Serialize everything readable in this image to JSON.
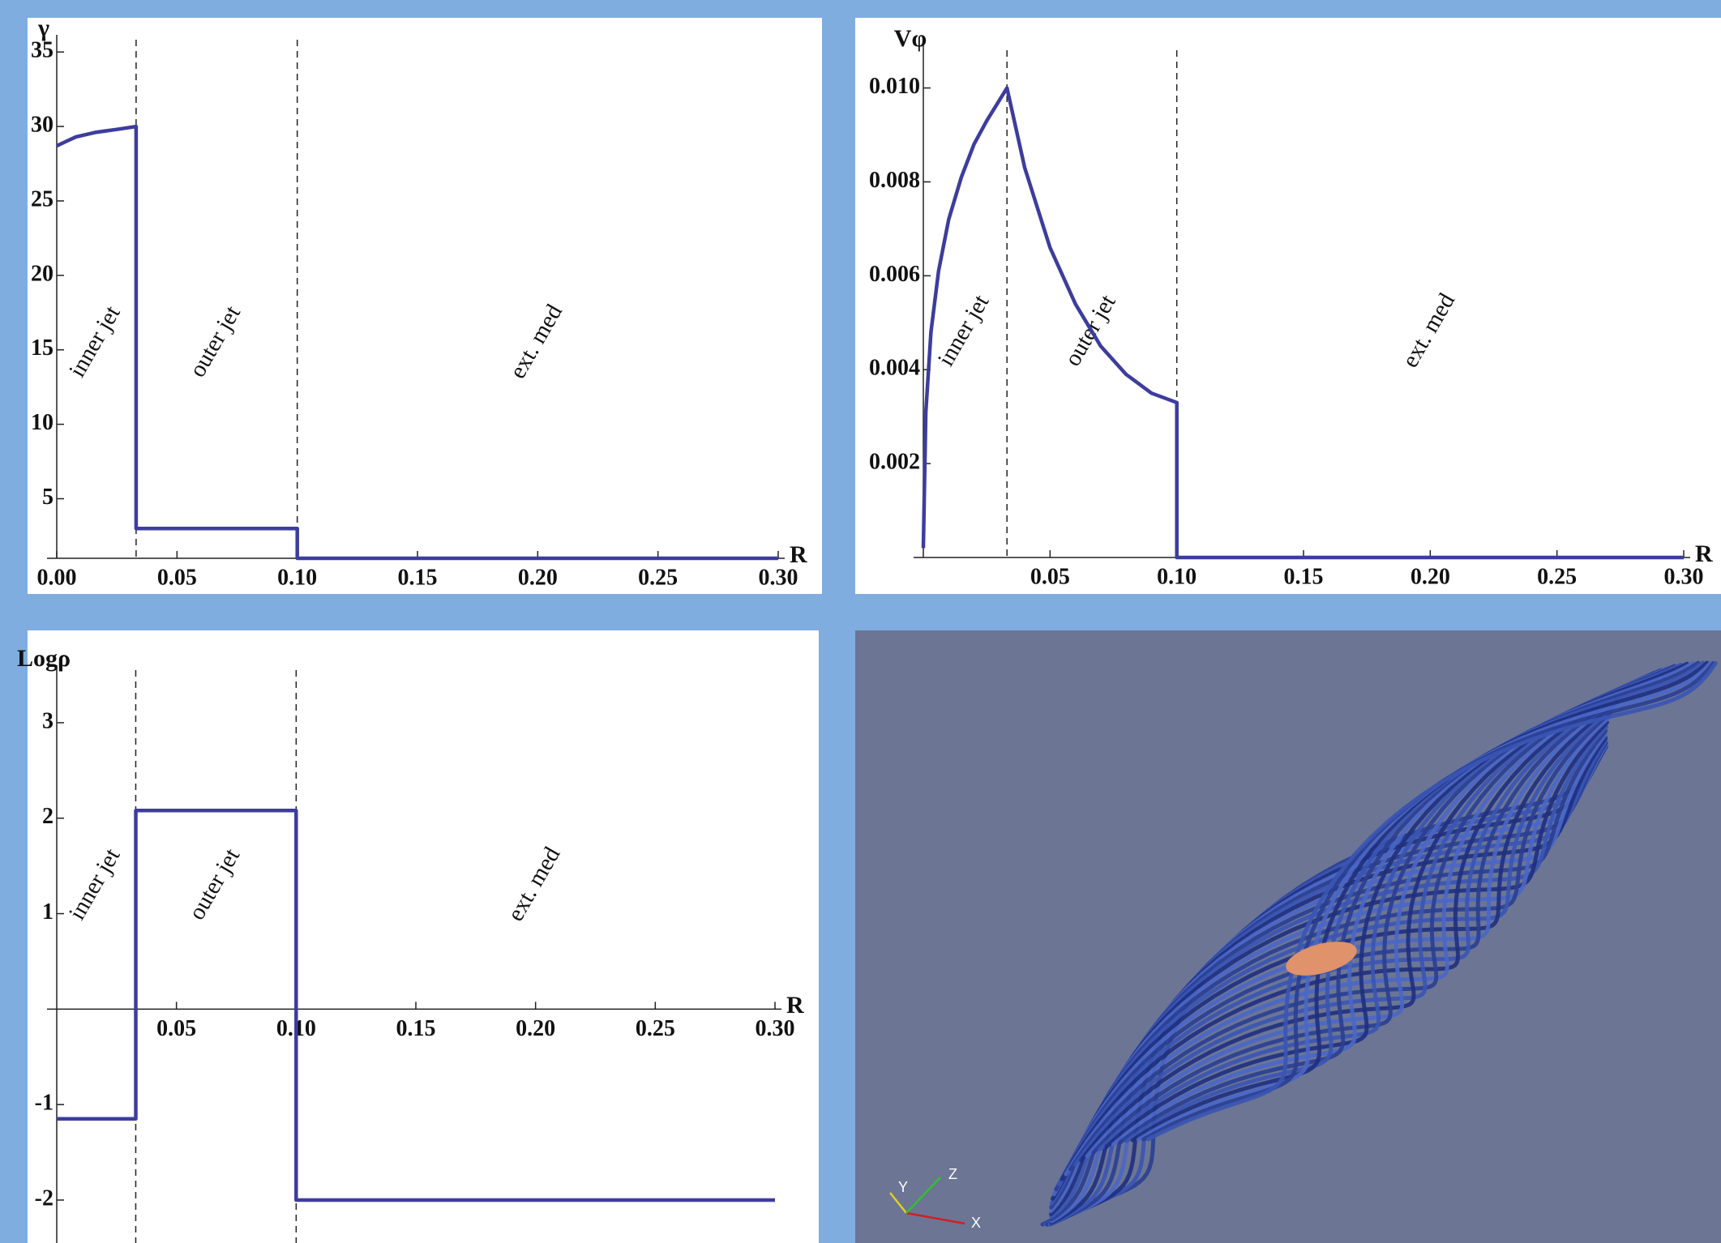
{
  "chart_data": [
    {
      "type": "line",
      "y_label": "γ",
      "x_label": "R",
      "color": "#3d3d9e",
      "x": [
        0,
        0.004,
        0.008,
        0.016,
        0.025,
        0.033,
        0.033,
        0.1,
        0.1,
        0.3
      ],
      "values": [
        28.7,
        29.0,
        29.3,
        29.6,
        29.8,
        30,
        3,
        3,
        1,
        1
      ],
      "xlim": [
        0,
        0.3
      ],
      "ylim": [
        1,
        35.5
      ],
      "xticks": [
        {
          "value": 0,
          "label": "0.00"
        },
        0.05,
        {
          "value": 0.1,
          "label": "0.10"
        },
        0.15,
        {
          "value": 0.2,
          "label": "0.20"
        },
        0.25,
        {
          "value": 0.3,
          "label": "0.30"
        }
      ],
      "yticks": [
        5,
        10,
        15,
        20,
        25,
        30,
        35
      ],
      "vlines": [
        0.033,
        0.1
      ],
      "annotations": [
        "inner jet",
        "outer jet",
        "ext. med"
      ]
    },
    {
      "type": "line",
      "y_label": "Vφ",
      "x_label": "R",
      "color": "#3d3d9e",
      "x": [
        0,
        0.001,
        0.003,
        0.006,
        0.01,
        0.015,
        0.02,
        0.025,
        0.033,
        0.04,
        0.05,
        0.06,
        0.07,
        0.08,
        0.09,
        0.1,
        0.1,
        0.3
      ],
      "values": [
        0.0002,
        0.0031,
        0.0048,
        0.0061,
        0.0072,
        0.0081,
        0.0088,
        0.0093,
        0.01,
        0.0083,
        0.0066,
        0.0054,
        0.0045,
        0.0039,
        0.0035,
        0.0033,
        0,
        0
      ],
      "xlim": [
        0,
        0.3
      ],
      "ylim": [
        0,
        0.0107
      ],
      "xticks": [
        0.05,
        {
          "value": 0.1,
          "label": "0.10"
        },
        0.15,
        {
          "value": 0.2,
          "label": "0.20"
        },
        0.25,
        {
          "value": 0.3,
          "label": "0.30"
        }
      ],
      "yticks": [
        0.002,
        0.004,
        0.006,
        0.008,
        {
          "value": 0.01,
          "label": "0.010"
        }
      ],
      "vlines": [
        0.033,
        0.1
      ],
      "annotations": [
        "inner jet",
        "outer jet",
        "ext. med"
      ]
    },
    {
      "type": "line",
      "y_label": "Logρ",
      "x_label": "R",
      "color": "#3d3d9e",
      "x": [
        0,
        0.033,
        0.033,
        0.1,
        0.1,
        0.3
      ],
      "values": [
        -1.15,
        -1.15,
        2.08,
        2.08,
        -2,
        -2
      ],
      "xlim": [
        0,
        0.3
      ],
      "ylim": [
        -2.45,
        3.5
      ],
      "xticks": [
        0.05,
        {
          "value": 0.1,
          "label": "0.10"
        },
        0.15,
        {
          "value": 0.2,
          "label": "0.20"
        },
        0.25,
        {
          "value": 0.3,
          "label": "0.30"
        }
      ],
      "yticks": [
        -2,
        -1,
        1,
        2,
        3
      ],
      "vlines": [
        0.033,
        0.1
      ],
      "annotations": [
        "inner jet",
        "outer jet",
        "ext. med"
      ]
    }
  ],
  "render": {
    "axis_labels": [
      "X",
      "Y",
      "Z"
    ]
  }
}
